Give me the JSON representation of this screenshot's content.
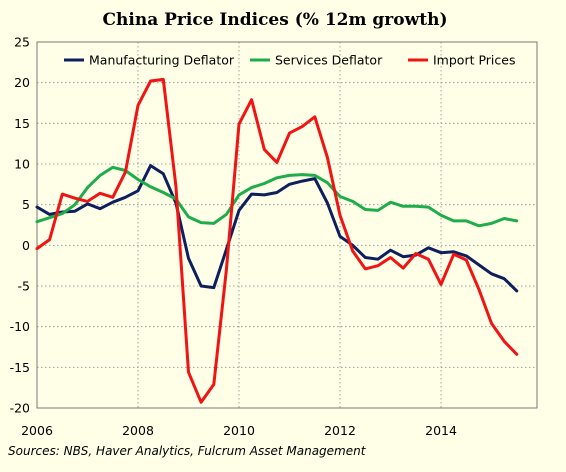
{
  "chart_data": {
    "type": "line",
    "title": "China Price Indices (% 12m growth)",
    "xlabel": "",
    "ylabel": "",
    "xlim": [
      2006,
      2015.9
    ],
    "ylim": [
      -20,
      25
    ],
    "xticks": [
      2006,
      2008,
      2010,
      2012,
      2014
    ],
    "yticks": [
      -20,
      -15,
      -10,
      -5,
      0,
      5,
      10,
      15,
      20,
      25
    ],
    "grid": true,
    "legend_position": "top",
    "source": "Sources: NBS, Haver Analytics, Fulcrum Asset Management",
    "series": [
      {
        "name": "Manufacturing Deflator",
        "color": "#0d1f5c",
        "points": [
          [
            2006.0,
            4.7
          ],
          [
            2006.25,
            3.8
          ],
          [
            2006.5,
            4.1
          ],
          [
            2006.75,
            4.2
          ],
          [
            2007.0,
            5.1
          ],
          [
            2007.25,
            4.5
          ],
          [
            2007.5,
            5.3
          ],
          [
            2007.75,
            5.9
          ],
          [
            2008.0,
            6.7
          ],
          [
            2008.25,
            9.8
          ],
          [
            2008.5,
            8.8
          ],
          [
            2008.75,
            5.2
          ],
          [
            2009.0,
            -1.6
          ],
          [
            2009.25,
            -5.0
          ],
          [
            2009.5,
            -5.2
          ],
          [
            2009.75,
            -0.5
          ],
          [
            2010.0,
            4.3
          ],
          [
            2010.25,
            6.3
          ],
          [
            2010.5,
            6.2
          ],
          [
            2010.75,
            6.5
          ],
          [
            2011.0,
            7.5
          ],
          [
            2011.25,
            7.9
          ],
          [
            2011.5,
            8.2
          ],
          [
            2011.75,
            5.2
          ],
          [
            2012.0,
            1.1
          ],
          [
            2012.25,
            0.0
          ],
          [
            2012.5,
            -1.5
          ],
          [
            2012.75,
            -1.7
          ],
          [
            2013.0,
            -0.6
          ],
          [
            2013.25,
            -1.4
          ],
          [
            2013.5,
            -1.2
          ],
          [
            2013.75,
            -0.3
          ],
          [
            2014.0,
            -0.9
          ],
          [
            2014.25,
            -0.8
          ],
          [
            2014.5,
            -1.3
          ],
          [
            2014.75,
            -2.4
          ],
          [
            2015.0,
            -3.5
          ],
          [
            2015.25,
            -4.1
          ],
          [
            2015.5,
            -5.6
          ]
        ]
      },
      {
        "name": "Services Deflator",
        "color": "#1fad4b",
        "points": [
          [
            2006.0,
            2.9
          ],
          [
            2006.25,
            3.4
          ],
          [
            2006.5,
            3.9
          ],
          [
            2006.75,
            5.0
          ],
          [
            2007.0,
            7.1
          ],
          [
            2007.25,
            8.6
          ],
          [
            2007.5,
            9.6
          ],
          [
            2007.75,
            9.2
          ],
          [
            2008.0,
            8.1
          ],
          [
            2008.25,
            7.2
          ],
          [
            2008.5,
            6.5
          ],
          [
            2008.75,
            5.7
          ],
          [
            2009.0,
            3.5
          ],
          [
            2009.25,
            2.8
          ],
          [
            2009.5,
            2.7
          ],
          [
            2009.75,
            3.8
          ],
          [
            2010.0,
            6.2
          ],
          [
            2010.25,
            7.1
          ],
          [
            2010.5,
            7.6
          ],
          [
            2010.75,
            8.3
          ],
          [
            2011.0,
            8.6
          ],
          [
            2011.25,
            8.7
          ],
          [
            2011.5,
            8.6
          ],
          [
            2011.75,
            7.7
          ],
          [
            2012.0,
            6.0
          ],
          [
            2012.25,
            5.4
          ],
          [
            2012.5,
            4.4
          ],
          [
            2012.75,
            4.3
          ],
          [
            2013.0,
            5.3
          ],
          [
            2013.25,
            4.8
          ],
          [
            2013.5,
            4.8
          ],
          [
            2013.75,
            4.7
          ],
          [
            2014.0,
            3.7
          ],
          [
            2014.25,
            3.0
          ],
          [
            2014.5,
            3.0
          ],
          [
            2014.75,
            2.4
          ],
          [
            2015.0,
            2.7
          ],
          [
            2015.25,
            3.3
          ],
          [
            2015.5,
            3.0
          ]
        ]
      },
      {
        "name": "Import Prices",
        "color": "#f01414",
        "points": [
          [
            2006.0,
            -0.4
          ],
          [
            2006.25,
            0.7
          ],
          [
            2006.5,
            6.3
          ],
          [
            2006.75,
            5.8
          ],
          [
            2007.0,
            5.4
          ],
          [
            2007.25,
            6.4
          ],
          [
            2007.5,
            5.9
          ],
          [
            2007.75,
            9.0
          ],
          [
            2008.0,
            17.2
          ],
          [
            2008.25,
            20.2
          ],
          [
            2008.5,
            20.4
          ],
          [
            2008.75,
            7.3
          ],
          [
            2009.0,
            -15.6
          ],
          [
            2009.25,
            -19.3
          ],
          [
            2009.5,
            -17.1
          ],
          [
            2009.75,
            -3.0
          ],
          [
            2010.0,
            14.9
          ],
          [
            2010.25,
            17.9
          ],
          [
            2010.5,
            11.8
          ],
          [
            2010.75,
            10.2
          ],
          [
            2011.0,
            13.8
          ],
          [
            2011.25,
            14.6
          ],
          [
            2011.5,
            15.8
          ],
          [
            2011.75,
            10.8
          ],
          [
            2012.0,
            3.7
          ],
          [
            2012.25,
            -0.7
          ],
          [
            2012.5,
            -2.9
          ],
          [
            2012.75,
            -2.5
          ],
          [
            2013.0,
            -1.5
          ],
          [
            2013.25,
            -2.8
          ],
          [
            2013.5,
            -1.0
          ],
          [
            2013.75,
            -1.7
          ],
          [
            2014.0,
            -4.8
          ],
          [
            2014.25,
            -1.1
          ],
          [
            2014.5,
            -1.8
          ],
          [
            2014.75,
            -5.4
          ],
          [
            2015.0,
            -9.6
          ],
          [
            2015.25,
            -11.8
          ],
          [
            2015.5,
            -13.4
          ]
        ]
      }
    ]
  }
}
